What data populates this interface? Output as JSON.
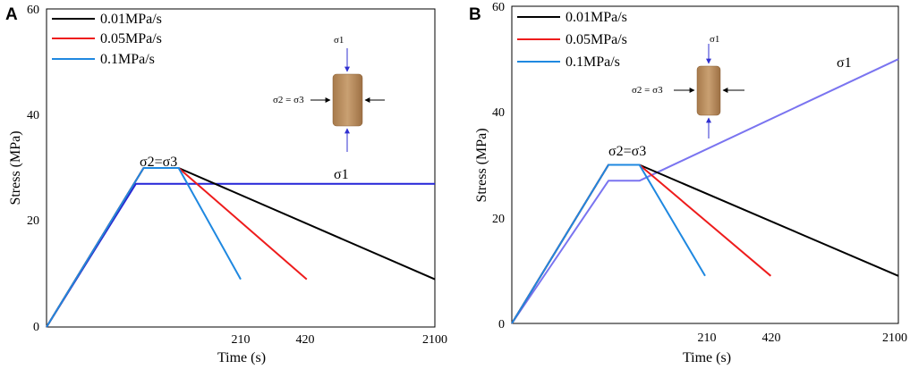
{
  "colors": {
    "black": "#000000",
    "red": "#ee1c1c",
    "blue": "#1f88e0",
    "navy": "#2424d8",
    "lavender": "#7a74f0",
    "sample": "#b58a5a"
  },
  "chart_data": [
    {
      "panel_label": "A",
      "type": "line",
      "xlabel": "Time (s)",
      "ylabel": "Stress (MPa)",
      "ylim": [
        0,
        60
      ],
      "y_ticks": [
        "0",
        "20",
        "40",
        "60"
      ],
      "x_tick_labels": [
        "210",
        "420",
        "2100"
      ],
      "legend": [
        "0.01MPa/s",
        "0.05MPa/s",
        "0.1MPa/s"
      ],
      "labels": {
        "confining": "σ2=σ3",
        "axial": "σ1"
      },
      "inset": {
        "top": "σ1",
        "side": "σ2 = σ3"
      },
      "series": [
        {
          "name": "0.01MPa/s",
          "color": "#000000",
          "points": [
            [
              0,
              0
            ],
            [
              25,
              30
            ],
            [
              34,
              30
            ],
            [
              100,
              9
            ]
          ]
        },
        {
          "name": "0.05MPa/s",
          "color": "#ee1c1c",
          "points": [
            [
              0,
              0
            ],
            [
              25,
              30
            ],
            [
              34,
              30
            ],
            [
              67,
              9
            ]
          ]
        },
        {
          "name": "0.1MPa/s",
          "color": "#1f88e0",
          "points": [
            [
              0,
              0
            ],
            [
              25,
              30
            ],
            [
              34,
              30
            ],
            [
              50,
              9
            ]
          ]
        },
        {
          "name": "σ1",
          "color": "#2424d8",
          "points": [
            [
              0,
              0
            ],
            [
              23,
              27
            ],
            [
              100,
              27
            ]
          ]
        }
      ]
    },
    {
      "panel_label": "B",
      "type": "line",
      "xlabel": "Time (s)",
      "ylabel": "Stress (MPa)",
      "ylim": [
        0,
        60
      ],
      "y_ticks": [
        "0",
        "20",
        "40",
        "60"
      ],
      "x_tick_labels": [
        "210",
        "420",
        "2100"
      ],
      "legend": [
        "0.01MPa/s",
        "0.05MPa/s",
        "0.1MPa/s"
      ],
      "labels": {
        "confining": "σ2=σ3",
        "axial": "σ1"
      },
      "inset": {
        "top": "σ1",
        "side": "σ2 = σ3"
      },
      "series": [
        {
          "name": "0.01MPa/s",
          "color": "#000000",
          "points": [
            [
              0,
              0
            ],
            [
              25,
              30
            ],
            [
              33,
              30
            ],
            [
              100,
              9
            ]
          ]
        },
        {
          "name": "0.05MPa/s",
          "color": "#ee1c1c",
          "points": [
            [
              0,
              0
            ],
            [
              25,
              30
            ],
            [
              33,
              30
            ],
            [
              67,
              9
            ]
          ]
        },
        {
          "name": "0.1MPa/s",
          "color": "#1f88e0",
          "points": [
            [
              0,
              0
            ],
            [
              25,
              30
            ],
            [
              33,
              30
            ],
            [
              50,
              9
            ]
          ]
        },
        {
          "name": "σ1",
          "color": "#7a74f0",
          "points": [
            [
              0,
              0
            ],
            [
              25,
              27
            ],
            [
              33,
              27
            ],
            [
              100,
              50
            ]
          ]
        }
      ]
    }
  ]
}
